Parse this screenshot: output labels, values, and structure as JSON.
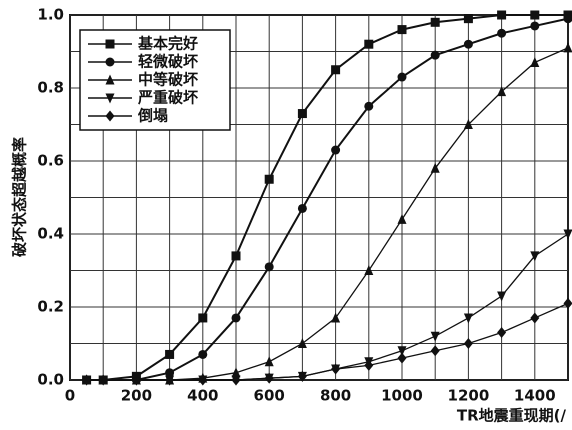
{
  "chart_data": {
    "type": "line",
    "ylabel": "破坏状态超越概率",
    "xlabel": "TR地震重现期(/",
    "x": [
      50,
      100,
      200,
      300,
      400,
      500,
      600,
      700,
      800,
      900,
      1000,
      1100,
      1200,
      1300,
      1400,
      1500
    ],
    "xlim": [
      0,
      1500
    ],
    "ylim": [
      0,
      1
    ],
    "xticks": [
      0,
      200,
      400,
      600,
      800,
      1000,
      1200,
      1400
    ],
    "yticks": [
      {
        "value": 0,
        "label": "0.0"
      },
      0.2,
      0.4,
      0.6,
      0.8,
      {
        "value": 1,
        "label": "1.0"
      }
    ],
    "x_minor_grid": [
      100,
      300,
      500,
      700,
      900,
      1100,
      1300,
      1500
    ],
    "y_minor_grid": [
      0.1,
      0.3,
      0.5,
      0.7,
      0.9
    ],
    "grid": true,
    "legend": "upper left",
    "series": [
      {
        "name": "基本完好",
        "color": "#111111",
        "marker": "square",
        "values": [
          0,
          0,
          0.01,
          0.07,
          0.17,
          0.34,
          0.55,
          0.73,
          0.85,
          0.92,
          0.96,
          0.98,
          0.99,
          1.0,
          1.0,
          1.0
        ]
      },
      {
        "name": "轻微破坏",
        "color": "#111111",
        "marker": "circle",
        "values": [
          0,
          0,
          0,
          0.02,
          0.07,
          0.17,
          0.31,
          0.47,
          0.63,
          0.75,
          0.83,
          0.89,
          0.92,
          0.95,
          0.97,
          0.99
        ]
      },
      {
        "name": "中等破坏",
        "color": "#111111",
        "marker": "triangle-up",
        "values": [
          0,
          0,
          0,
          0,
          0.005,
          0.02,
          0.05,
          0.1,
          0.17,
          0.3,
          0.44,
          0.58,
          0.7,
          0.79,
          0.87,
          0.91
        ]
      },
      {
        "name": "严重破坏",
        "color": "#111111",
        "marker": "triangle-down",
        "values": [
          0,
          0,
          0,
          0,
          0,
          0,
          0.005,
          0.01,
          0.03,
          0.05,
          0.08,
          0.12,
          0.17,
          0.23,
          0.34,
          0.4
        ]
      },
      {
        "name": "倒塌",
        "color": "#111111",
        "marker": "diamond",
        "values": [
          0,
          0,
          0,
          0,
          0,
          0,
          0.005,
          0.01,
          0.03,
          0.04,
          0.06,
          0.08,
          0.1,
          0.13,
          0.17,
          0.21
        ]
      }
    ]
  }
}
